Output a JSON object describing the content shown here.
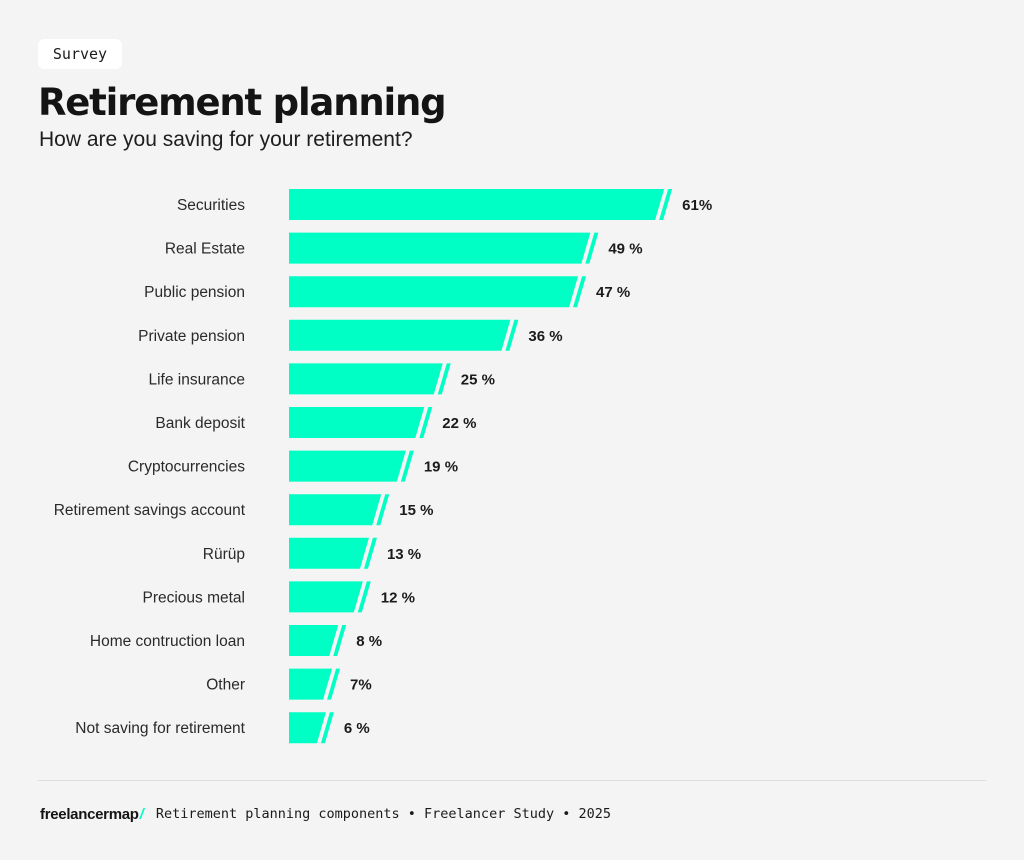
{
  "tag": "Survey",
  "title": "Retirement planning",
  "subtitle": "How are you saving for your retirement?",
  "accent_color": "#00ffc4",
  "value_suffix": "%",
  "chart_data": {
    "type": "bar",
    "orientation": "horizontal",
    "categories": [
      "Securities",
      "Real Estate",
      "Public pension",
      "Private pension",
      "Life insurance",
      "Bank deposit",
      "Cryptocurrencies",
      "Retirement savings account",
      "Rürüp",
      "Precious metal",
      "Home contruction loan",
      "Other",
      "Not saving for retirement"
    ],
    "values": [
      61,
      49,
      47,
      36,
      25,
      22,
      19,
      15,
      13,
      12,
      8,
      7,
      6
    ],
    "labels": [
      "61%",
      "49 %",
      "47 %",
      "36 %",
      "25 %",
      "22 %",
      "19 %",
      "15 %",
      "13 %",
      "12 %",
      "8 %",
      "7%",
      "6 %"
    ],
    "unit": "%",
    "title": "Retirement planning",
    "subtitle": "How are you saving for your retirement?",
    "grid": false,
    "legend": "none",
    "bar_color": "#00ffc4"
  },
  "footer": {
    "brand": "freelancermap",
    "brand_mark": "/",
    "source": "Retirement planning components • Freelancer Study • 2025"
  }
}
